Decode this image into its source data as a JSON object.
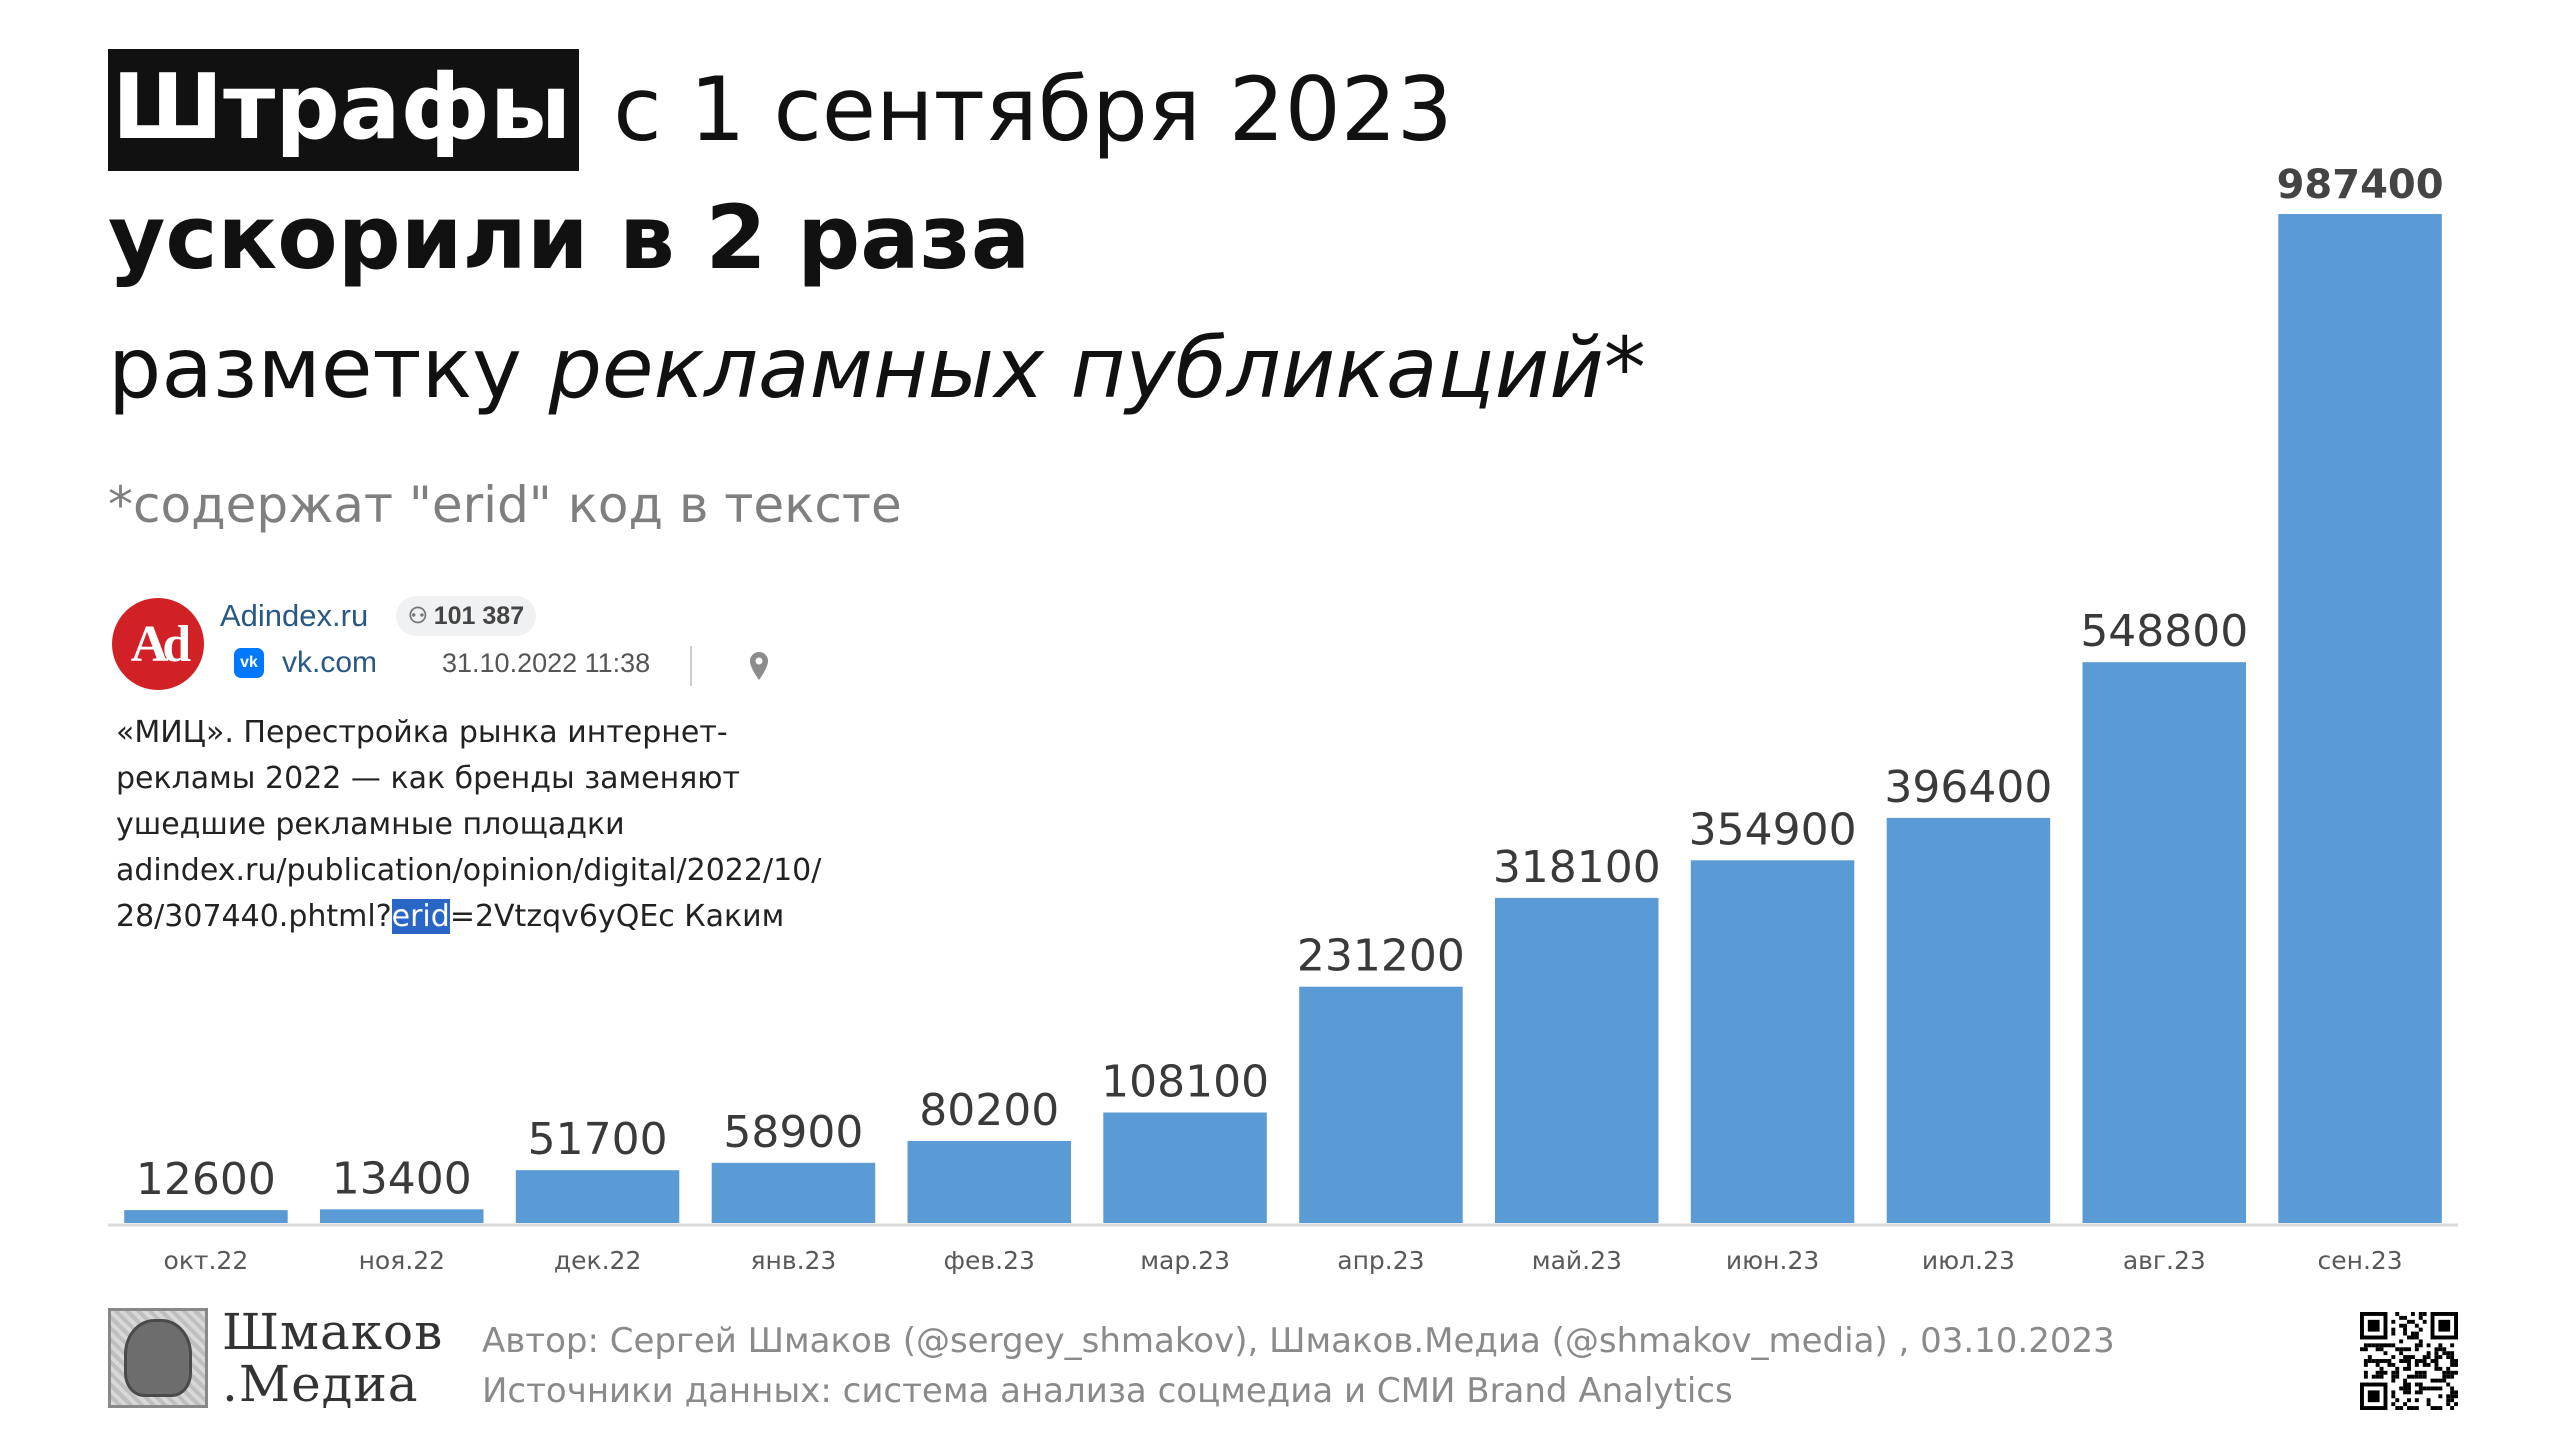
{
  "header": {
    "highlight": "Штрафы",
    "title_rest": "с 1 сентября 2023",
    "subtitle_bold": "ускорили в 2 раза",
    "subtitle_plain": "разметку ",
    "subtitle_italic": "рекламных публикаций*",
    "footnote": "*содержат \"erid\" код в тексте"
  },
  "post": {
    "avatar_text": "Ad",
    "name": "Adindex.ru",
    "followers": "101 387",
    "source": "vk.com",
    "date": "31.10.2022 11:38",
    "text_lines": [
      "«МИЦ». Перестройка рынка интернет-",
      "рекламы 2022 — как бренды заменяют",
      "ушедшие рекламные площадки",
      "adindex.ru/publication/opinion/digital/2022/10/"
    ],
    "last_line_before": "28/307440.phtml?",
    "last_line_highlight": "erid",
    "last_line_after": "=2Vtzqv6yQEc Каким"
  },
  "chart_data": {
    "type": "bar",
    "title": "",
    "xlabel": "",
    "ylabel": "",
    "categories": [
      "окт.22",
      "ноя.22",
      "дек.22",
      "янв.23",
      "фев.23",
      "мар.23",
      "апр.23",
      "май.23",
      "июн.23",
      "июл.23",
      "авг.23",
      "сен.23"
    ],
    "values": [
      12600,
      13400,
      51700,
      58900,
      80200,
      108100,
      231200,
      318100,
      354900,
      396400,
      548800,
      987400
    ],
    "ylim": [
      0,
      987400
    ],
    "bar_color": "#5b9bd5",
    "grid": false,
    "legend": "none",
    "emphasized_label_index": 11
  },
  "footer": {
    "brand_line1": "Шмаков",
    "brand_line2": ".Медиа",
    "author": "Автор: Сергей Шмаков (@sergey_shmakov), Шмаков.Медиа (@shmakov_media) , 03.10.2023",
    "sources": "Источники данных: система анализа соцмедиа и СМИ Brand Analytics"
  }
}
